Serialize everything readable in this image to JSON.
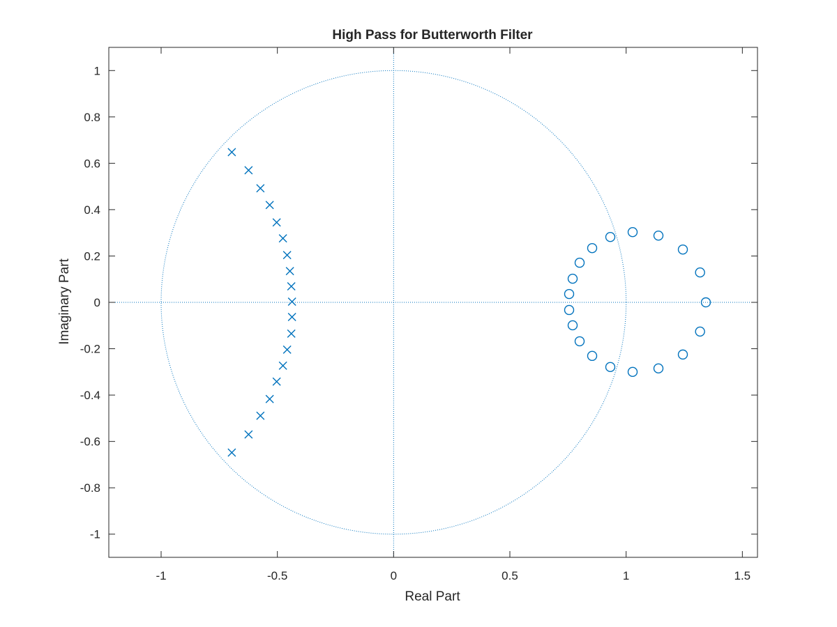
{
  "chart_data": {
    "type": "scatter",
    "title": "High Pass for Butterworth Filter",
    "xlabel": "Real Part",
    "ylabel": "Imaginary Part",
    "xlim": [
      -1.225,
      1.565
    ],
    "ylim": [
      -1.1,
      1.1
    ],
    "xticks": [
      -1,
      -0.5,
      0,
      0.5,
      1,
      1.5
    ],
    "yticks": [
      -1,
      -0.8,
      -0.6,
      -0.4,
      -0.2,
      0,
      0.2,
      0.4,
      0.6,
      0.8,
      1
    ],
    "grid": false,
    "unit_circle": true,
    "color": "#0072BD",
    "series": [
      {
        "marker": "x",
        "points": [
          [
            -0.696,
            0.648
          ],
          [
            -0.624,
            0.57
          ],
          [
            -0.573,
            0.492
          ],
          [
            -0.533,
            0.42
          ],
          [
            -0.503,
            0.345
          ],
          [
            -0.476,
            0.276
          ],
          [
            -0.458,
            0.204
          ],
          [
            -0.446,
            0.135
          ],
          [
            -0.44,
            0.069
          ],
          [
            -0.437,
            0.003
          ],
          [
            -0.437,
            -0.063
          ],
          [
            -0.44,
            -0.135
          ],
          [
            -0.458,
            -0.204
          ],
          [
            -0.476,
            -0.273
          ],
          [
            -0.503,
            -0.342
          ],
          [
            -0.533,
            -0.417
          ],
          [
            -0.573,
            -0.489
          ],
          [
            -0.624,
            -0.57
          ],
          [
            -0.696,
            -0.648
          ]
        ]
      },
      {
        "marker": "o",
        "points": [
          [
            1.343,
            0.0
          ],
          [
            1.318,
            0.129
          ],
          [
            1.244,
            0.228
          ],
          [
            1.139,
            0.288
          ],
          [
            1.028,
            0.303
          ],
          [
            0.932,
            0.282
          ],
          [
            0.854,
            0.234
          ],
          [
            0.8,
            0.171
          ],
          [
            0.77,
            0.102
          ],
          [
            0.755,
            0.036
          ],
          [
            0.755,
            -0.033
          ],
          [
            0.77,
            -0.099
          ],
          [
            0.8,
            -0.168
          ],
          [
            0.854,
            -0.231
          ],
          [
            0.932,
            -0.279
          ],
          [
            1.028,
            -0.3
          ],
          [
            1.139,
            -0.285
          ],
          [
            1.244,
            -0.225
          ],
          [
            1.318,
            -0.126
          ]
        ]
      }
    ]
  }
}
